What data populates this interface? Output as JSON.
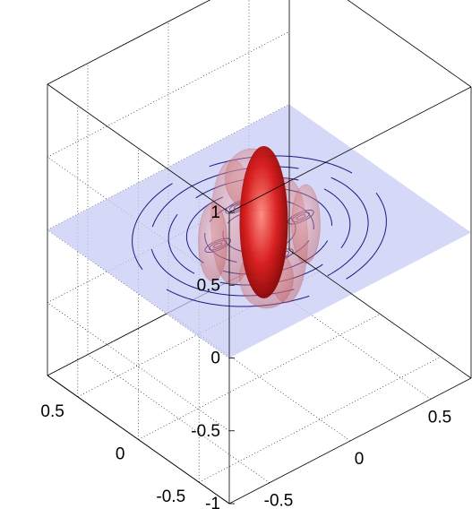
{
  "chart_data": {
    "type": "3d-isosurface",
    "title": "",
    "xlabel": "",
    "ylabel": "",
    "zlabel": "",
    "xlim": [
      -0.75,
      0.75
    ],
    "ylim": [
      -0.75,
      0.75
    ],
    "zlim": [
      -1,
      1
    ],
    "grid": true,
    "box": true,
    "z_ticks": [
      {
        "value": 1,
        "label": "1"
      },
      {
        "value": 0.5,
        "label": "0.5"
      },
      {
        "value": 0,
        "label": "0"
      },
      {
        "value": -0.5,
        "label": "-0.5"
      },
      {
        "value": -1,
        "label": "-1"
      }
    ],
    "y_ticks": [
      {
        "value": 0.5,
        "label": "0.5"
      },
      {
        "value": 0,
        "label": "0"
      },
      {
        "value": -0.5,
        "label": "-0.5"
      }
    ],
    "x_ticks": [
      {
        "value": -0.5,
        "label": "-0.5"
      },
      {
        "value": 0,
        "label": "0"
      },
      {
        "value": 0.5,
        "label": "0.5"
      }
    ],
    "slice_plane": {
      "z": 0,
      "color": "#c8cbf5",
      "opacity": 0.75
    },
    "contours": {
      "color": "#1a1a80",
      "radii": [
        0.18,
        0.27,
        0.36,
        0.45,
        0.54,
        0.63
      ]
    },
    "isosurfaces": [
      {
        "name": "inner",
        "color": "#d81818",
        "opacity": 0.95
      },
      {
        "name": "outer",
        "color": "#d87070",
        "opacity": 0.45
      }
    ]
  }
}
